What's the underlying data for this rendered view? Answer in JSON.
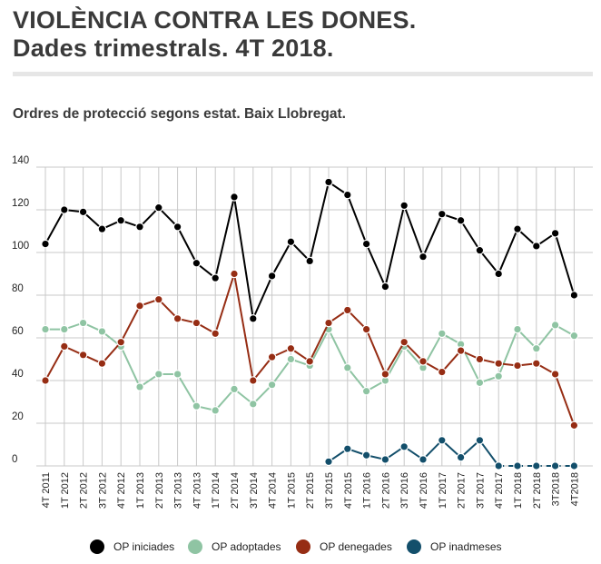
{
  "header": {
    "title_line1": "VIOLÈNCIA CONTRA LES DONES.",
    "title_line2": "Dades trimestrals. 4T 2018."
  },
  "chart_data": {
    "type": "line",
    "title": "Ordres de protecció segons estat. Baix Llobregat.",
    "xlabel": "",
    "ylabel": "",
    "ylim": [
      0,
      140
    ],
    "yticks": [
      0,
      20,
      40,
      60,
      80,
      100,
      120,
      140
    ],
    "grid": true,
    "legend_position": "bottom",
    "categories": [
      "4T 2011",
      "1T 2012",
      "2T 2012",
      "3T 2012",
      "4T 2012",
      "1T 2013",
      "2T 2013",
      "3T 2013",
      "4T 2013",
      "1T 2014",
      "2T 2014",
      "3T 2014",
      "4T 2014",
      "1T 2015",
      "2T 2015",
      "3T 2015",
      "4T 2015",
      "1T 2016",
      "2T 2016",
      "3T 2016",
      "4T 2016",
      "1T 2017",
      "2T 2017",
      "3T 2017",
      "4T 2017",
      "1T 2018",
      "2T 2018",
      "3T2018",
      "4T2018"
    ],
    "series": [
      {
        "name": "OP iniciades",
        "color": "#000000",
        "values": [
          104,
          120,
          119,
          111,
          115,
          112,
          121,
          112,
          95,
          88,
          126,
          69,
          89,
          105,
          96,
          133,
          127,
          104,
          84,
          122,
          98,
          118,
          115,
          101,
          90,
          111,
          103,
          109,
          80
        ]
      },
      {
        "name": "OP adoptades",
        "color": "#8fc4a3",
        "values": [
          64,
          64,
          67,
          63,
          56,
          37,
          43,
          43,
          28,
          26,
          36,
          29,
          38,
          50,
          47,
          64,
          46,
          35,
          40,
          56,
          46,
          62,
          57,
          39,
          42,
          64,
          55,
          66,
          61
        ]
      },
      {
        "name": "OP denegades",
        "color": "#962d14",
        "values": [
          40,
          56,
          52,
          48,
          58,
          75,
          78,
          69,
          67,
          62,
          90,
          40,
          51,
          55,
          49,
          67,
          73,
          64,
          43,
          58,
          49,
          44,
          54,
          50,
          48,
          47,
          48,
          43,
          19
        ]
      },
      {
        "name": "OP inadmeses",
        "color": "#134f6b",
        "values": [
          null,
          null,
          null,
          null,
          null,
          null,
          null,
          null,
          null,
          null,
          null,
          null,
          null,
          null,
          null,
          2,
          8,
          5,
          3,
          9,
          3,
          12,
          4,
          12,
          0,
          0,
          0,
          0,
          0
        ]
      }
    ]
  }
}
